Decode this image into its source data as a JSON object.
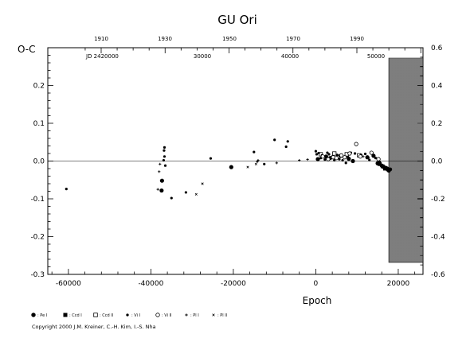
{
  "chart_data": {
    "type": "scatter",
    "title": "GU Ori",
    "xlabel": "Epoch",
    "ylabel": "O-C",
    "xlim": [
      -65000,
      26000
    ],
    "ylim": [
      -0.3,
      0.3
    ],
    "ylim_right": [
      -0.6,
      0.6
    ],
    "x_ticks": [
      -60000,
      -40000,
      -20000,
      0,
      20000
    ],
    "x_tick_labels": [
      "-60000",
      "-40000",
      "-20000",
      "0",
      "20000"
    ],
    "y_ticks": [
      -0.3,
      -0.2,
      -0.1,
      0.0,
      0.1,
      0.2
    ],
    "y_tick_labels": [
      "-0.3",
      "-0.2",
      "-0.1",
      "0.0",
      "0.1",
      "0.2"
    ],
    "y_right_ticks": [
      -0.6,
      -0.4,
      -0.2,
      0.0,
      0.2,
      0.4,
      0.6
    ],
    "y_right_tick_labels": [
      "-0.6",
      "-0.4",
      "-0.2",
      "0.0",
      "0.2",
      "0.4",
      "0.6"
    ],
    "top_year_labels": [
      "1910",
      "1930",
      "1950",
      "1970",
      "1990"
    ],
    "jd_prefix": "JD 2420000",
    "jd_labels": [
      "30000",
      "40000",
      "50000"
    ],
    "hatched_region_start": 16500,
    "zero_line": 0.0,
    "series": [
      {
        "name": "Pe I",
        "marker": "filled-circle",
        "points": [
          [
            -37300,
            -0.052
          ],
          [
            -37400,
            -0.078
          ],
          [
            -20500,
            -0.016
          ],
          [
            2500,
            0.012
          ],
          [
            3500,
            0.008
          ],
          [
            500,
            0.005
          ],
          [
            6000,
            0.014
          ],
          [
            8000,
            0.006
          ],
          [
            9000,
            0.0
          ],
          [
            12500,
            0.01
          ],
          [
            14000,
            0.014
          ],
          [
            15000,
            -0.006
          ],
          [
            16000,
            -0.012
          ],
          [
            17000,
            -0.018
          ],
          [
            17300,
            -0.02
          ],
          [
            17700,
            -0.025
          ],
          [
            18000,
            -0.022
          ],
          [
            16500,
            -0.016
          ]
        ]
      },
      {
        "name": "Ccd I",
        "marker": "filled-square",
        "points": [
          [
            15500,
            -0.008
          ],
          [
            16200,
            -0.014
          ],
          [
            16800,
            -0.02
          ],
          [
            17500,
            -0.022
          ]
        ]
      },
      {
        "name": "Ccd II",
        "marker": "open-square",
        "points": [
          [
            1200,
            0.018
          ],
          [
            4500,
            0.02
          ],
          [
            7500,
            0.018
          ],
          [
            10500,
            0.015
          ]
        ]
      },
      {
        "name": "Vi I",
        "marker": "small-filled-circle",
        "points": [
          [
            -60500,
            -0.074
          ],
          [
            -36700,
            0.036
          ],
          [
            -36800,
            0.028
          ],
          [
            -36900,
            0.002
          ],
          [
            -36700,
            0.012
          ],
          [
            -36500,
            -0.012
          ],
          [
            -35000,
            -0.098
          ],
          [
            -31500,
            -0.083
          ],
          [
            -25500,
            0.007
          ],
          [
            -15000,
            0.024
          ],
          [
            -12500,
            -0.008
          ],
          [
            -10000,
            0.056
          ],
          [
            -7200,
            0.038
          ],
          [
            -6800,
            0.052
          ],
          [
            0,
            0.026
          ],
          [
            200,
            0.018
          ],
          [
            700,
            0.021
          ],
          [
            1200,
            0.008
          ],
          [
            1500,
            0.015
          ],
          [
            2200,
            0.004
          ],
          [
            2800,
            0.022
          ],
          [
            3200,
            0.018
          ],
          [
            4000,
            0.012
          ],
          [
            4500,
            0.002
          ],
          [
            5200,
            0.016
          ],
          [
            5700,
            0.005
          ],
          [
            6500,
            0.002
          ],
          [
            7300,
            -0.005
          ],
          [
            7800,
            0.01
          ],
          [
            8500,
            0.022
          ],
          [
            9500,
            0.02
          ],
          [
            11000,
            0.016
          ],
          [
            12000,
            0.019
          ],
          [
            13000,
            0.003
          ],
          [
            14500,
            0.008
          ],
          [
            15500,
            -0.002
          ]
        ]
      },
      {
        "name": "Vi II",
        "marker": "open-circle",
        "points": [
          [
            1700,
            0.012
          ],
          [
            3000,
            0.005
          ],
          [
            4200,
            0.01
          ],
          [
            5000,
            0.008
          ],
          [
            6200,
            0.015
          ],
          [
            7000,
            0.01
          ],
          [
            8200,
            0.02
          ],
          [
            9800,
            0.045
          ],
          [
            10800,
            0.012
          ],
          [
            13500,
            0.022
          ],
          [
            15200,
            0.005
          ]
        ]
      },
      {
        "name": "Pl I",
        "marker": "small-plus",
        "points": [
          [
            -38300,
            -0.075
          ],
          [
            -38000,
            -0.028
          ],
          [
            -37800,
            -0.008
          ],
          [
            -14000,
            0.002
          ],
          [
            -14200,
            -0.002
          ],
          [
            -9500,
            -0.005
          ],
          [
            -4000,
            0.002
          ],
          [
            -2000,
            0.004
          ],
          [
            11500,
            0.012
          ],
          [
            12800,
            0.008
          ]
        ]
      },
      {
        "name": "Pl II",
        "marker": "small-cross",
        "points": [
          [
            -29000,
            -0.088
          ],
          [
            -27500,
            -0.06
          ],
          [
            -16500,
            -0.016
          ],
          [
            -14500,
            -0.008
          ]
        ]
      }
    ]
  },
  "legend": [
    {
      "symbol": "filled-circle",
      "label": ": Pe I"
    },
    {
      "symbol": "filled-square",
      "label": ": Ccd I"
    },
    {
      "symbol": "open-square",
      "label": ": Ccd II"
    },
    {
      "symbol": "small-filled-circle",
      "label": ": Vi I"
    },
    {
      "symbol": "open-circle",
      "label": ": Vi II"
    },
    {
      "symbol": "small-plus",
      "label": ": Pl I"
    },
    {
      "symbol": "small-cross",
      "label": ": Pl II"
    }
  ],
  "copyright": "Copyright 2000 J.M. Kreiner, C.-H. Kim, I.-S. Nha"
}
